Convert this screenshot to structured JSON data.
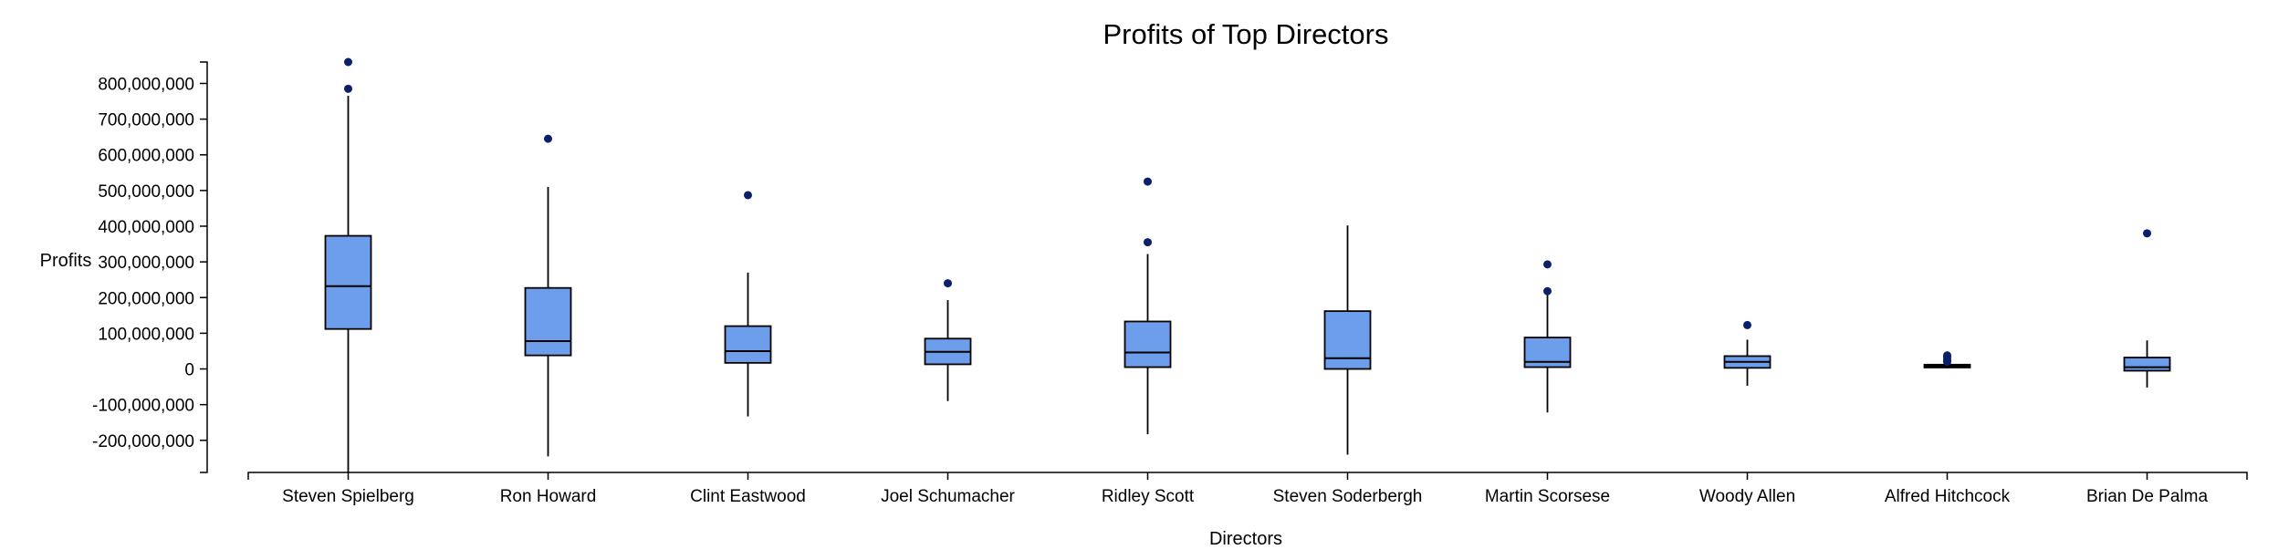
{
  "chart_data": {
    "type": "box",
    "title": "Profits of Top Directors",
    "xlabel": "Directors",
    "ylabel": "Profits",
    "ylim": [
      -290000000,
      860000000
    ],
    "yticks": [
      {
        "value": -200000000,
        "label": "-200,000,000"
      },
      {
        "value": -100000000,
        "label": "-100,000,000"
      },
      {
        "value": 0,
        "label": "0"
      },
      {
        "value": 100000000,
        "label": "100,000,000"
      },
      {
        "value": 200000000,
        "label": "200,000,000"
      },
      {
        "value": 300000000,
        "label": "300,000,000"
      },
      {
        "value": 400000000,
        "label": "400,000,000"
      },
      {
        "value": 500000000,
        "label": "500,000,000"
      },
      {
        "value": 600000000,
        "label": "600,000,000"
      },
      {
        "value": 700000000,
        "label": "700,000,000"
      },
      {
        "value": 800000000,
        "label": "800,000,000"
      }
    ],
    "grid": false,
    "box_color": "#6d9eeb",
    "outlier_color": "#0b1f6b",
    "categories": [
      "Steven Spielberg",
      "Ron Howard",
      "Clint Eastwood",
      "Joel Schumacher",
      "Ridley Scott",
      "Steven Soderbergh",
      "Martin Scorsese",
      "Woody Allen",
      "Alfred Hitchcock",
      "Brian De Palma"
    ],
    "boxes": [
      {
        "name": "Steven Spielberg",
        "min": -290000000,
        "q1": 112000000,
        "median": 232000000,
        "q3": 373000000,
        "max": 765000000,
        "outliers": [
          785000000,
          860000000
        ]
      },
      {
        "name": "Ron Howard",
        "min": -245000000,
        "q1": 38000000,
        "median": 78000000,
        "q3": 227000000,
        "max": 510000000,
        "outliers": [
          645000000
        ]
      },
      {
        "name": "Clint Eastwood",
        "min": -133000000,
        "q1": 17000000,
        "median": 50000000,
        "q3": 120000000,
        "max": 270000000,
        "outliers": [
          487000000
        ]
      },
      {
        "name": "Joel Schumacher",
        "min": -90000000,
        "q1": 13000000,
        "median": 48000000,
        "q3": 85000000,
        "max": 193000000,
        "outliers": [
          240000000
        ]
      },
      {
        "name": "Ridley Scott",
        "min": -183000000,
        "q1": 5000000,
        "median": 46000000,
        "q3": 133000000,
        "max": 322000000,
        "outliers": [
          355000000,
          525000000
        ]
      },
      {
        "name": "Steven Soderbergh",
        "min": -240000000,
        "q1": 0,
        "median": 30000000,
        "q3": 162000000,
        "max": 402000000,
        "outliers": []
      },
      {
        "name": "Martin Scorsese",
        "min": -122000000,
        "q1": 5000000,
        "median": 20000000,
        "q3": 88000000,
        "max": 208000000,
        "outliers": [
          218000000,
          293000000
        ]
      },
      {
        "name": "Woody Allen",
        "min": -47000000,
        "q1": 3000000,
        "median": 20000000,
        "q3": 36000000,
        "max": 82000000,
        "outliers": [
          123000000
        ]
      },
      {
        "name": "Alfred Hitchcock",
        "min": 2000000,
        "q1": 4000000,
        "median": 8000000,
        "q3": 12000000,
        "max": 28000000,
        "outliers": [
          20000000,
          25000000,
          32000000,
          38000000
        ]
      },
      {
        "name": "Brian De Palma",
        "min": -52000000,
        "q1": -5000000,
        "median": 5000000,
        "q3": 32000000,
        "max": 80000000,
        "outliers": [
          380000000
        ]
      }
    ]
  }
}
